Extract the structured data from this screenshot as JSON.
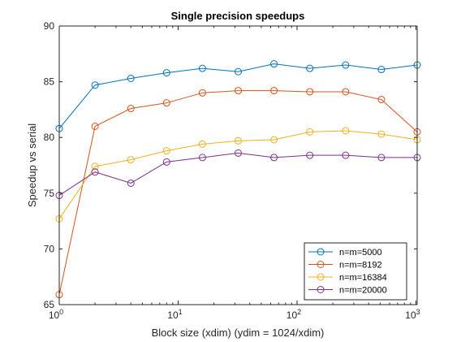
{
  "chart_data": {
    "type": "line",
    "title": "Single precision speedups",
    "xlabel": "Block size (xdim) (ydim = 1024/xdim)",
    "ylabel": "Speedup vs serial",
    "xscale": "log",
    "xlim": [
      1,
      1024
    ],
    "ylim": [
      65,
      90
    ],
    "x_ticks": [
      {
        "value": 1,
        "base": "10",
        "exp": "0"
      },
      {
        "value": 10,
        "base": "10",
        "exp": "1"
      },
      {
        "value": 100,
        "base": "10",
        "exp": "2"
      },
      {
        "value": 1000,
        "base": "10",
        "exp": "3"
      }
    ],
    "y_ticks": [
      "65",
      "70",
      "75",
      "80",
      "85",
      "90"
    ],
    "grid": false,
    "legend_position": "bottom-right",
    "x": [
      1,
      2,
      4,
      8,
      16,
      32,
      64,
      128,
      256,
      512,
      1024
    ],
    "series": [
      {
        "name": "n=m=5000",
        "color": "#0072bd",
        "values": [
          80.8,
          84.7,
          85.3,
          85.8,
          86.2,
          85.9,
          86.6,
          86.2,
          86.5,
          86.1,
          86.5
        ]
      },
      {
        "name": "n=m=8192",
        "color": "#d95319",
        "values": [
          65.9,
          81.0,
          82.6,
          83.1,
          84.0,
          84.2,
          84.2,
          84.1,
          84.1,
          83.4,
          80.5
        ]
      },
      {
        "name": "n=m=16384",
        "color": "#edb120",
        "values": [
          72.7,
          77.4,
          78.0,
          78.8,
          79.4,
          79.7,
          79.8,
          80.5,
          80.6,
          80.3,
          79.8
        ]
      },
      {
        "name": "n=m=20000",
        "color": "#7e2f8e",
        "values": [
          74.8,
          76.9,
          75.9,
          77.8,
          78.2,
          78.6,
          78.2,
          78.4,
          78.4,
          78.2,
          78.2
        ]
      }
    ]
  }
}
